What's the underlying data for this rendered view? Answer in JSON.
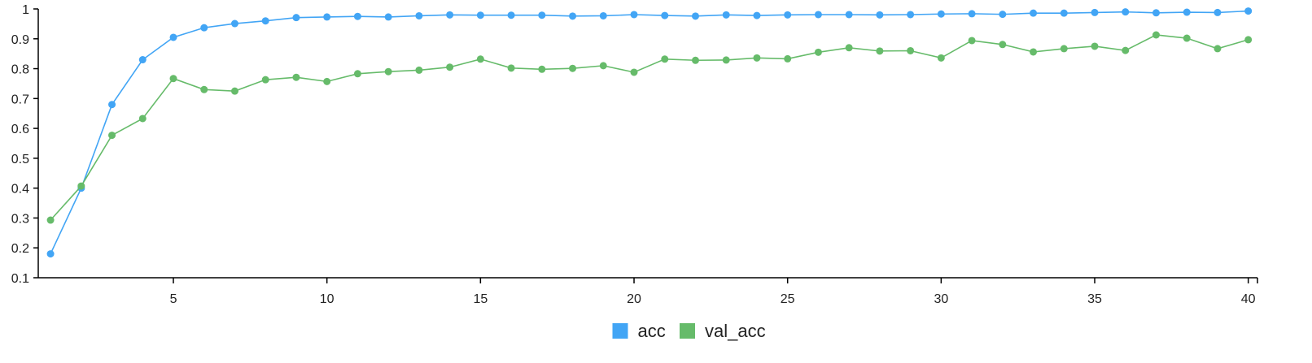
{
  "chart_data": {
    "type": "line",
    "title": "",
    "xlabel": "",
    "ylabel": "",
    "xlim": [
      0.6,
      40.3
    ],
    "ylim": [
      0.1,
      1.0
    ],
    "x_ticks": [
      5,
      10,
      15,
      20,
      25,
      30,
      35,
      40
    ],
    "y_ticks": [
      0.1,
      0.2,
      0.3,
      0.4,
      0.5,
      0.6,
      0.7,
      0.8,
      0.9,
      1.0
    ],
    "y_tick_labels": [
      "0.1",
      "0.2",
      "0.3",
      "0.4",
      "0.5",
      "0.6",
      "0.7",
      "0.8",
      "0.9",
      "1"
    ],
    "grid": false,
    "legend_position": "bottom-center",
    "x": [
      1,
      2,
      3,
      4,
      5,
      6,
      7,
      8,
      9,
      10,
      11,
      12,
      13,
      14,
      15,
      16,
      17,
      18,
      19,
      20,
      21,
      22,
      23,
      24,
      25,
      26,
      27,
      28,
      29,
      30,
      31,
      32,
      33,
      34,
      35,
      36,
      37,
      38,
      39,
      40
    ],
    "series": [
      {
        "name": "acc",
        "color": "#42a5f5",
        "values": [
          0.18,
          0.4,
          0.68,
          0.83,
          0.905,
          0.937,
          0.951,
          0.96,
          0.971,
          0.973,
          0.975,
          0.973,
          0.977,
          0.98,
          0.979,
          0.979,
          0.979,
          0.976,
          0.977,
          0.981,
          0.978,
          0.976,
          0.98,
          0.978,
          0.98,
          0.981,
          0.981,
          0.98,
          0.981,
          0.983,
          0.984,
          0.982,
          0.986,
          0.986,
          0.988,
          0.99,
          0.987,
          0.989,
          0.988,
          0.993
        ]
      },
      {
        "name": "val_acc",
        "color": "#66bb6a",
        "values": [
          0.293,
          0.407,
          0.577,
          0.633,
          0.767,
          0.73,
          0.725,
          0.763,
          0.771,
          0.757,
          0.783,
          0.79,
          0.795,
          0.805,
          0.832,
          0.802,
          0.798,
          0.801,
          0.81,
          0.788,
          0.832,
          0.828,
          0.829,
          0.836,
          0.833,
          0.855,
          0.87,
          0.859,
          0.86,
          0.836,
          0.894,
          0.881,
          0.856,
          0.867,
          0.875,
          0.861,
          0.913,
          0.902,
          0.867,
          0.897
        ]
      }
    ]
  }
}
